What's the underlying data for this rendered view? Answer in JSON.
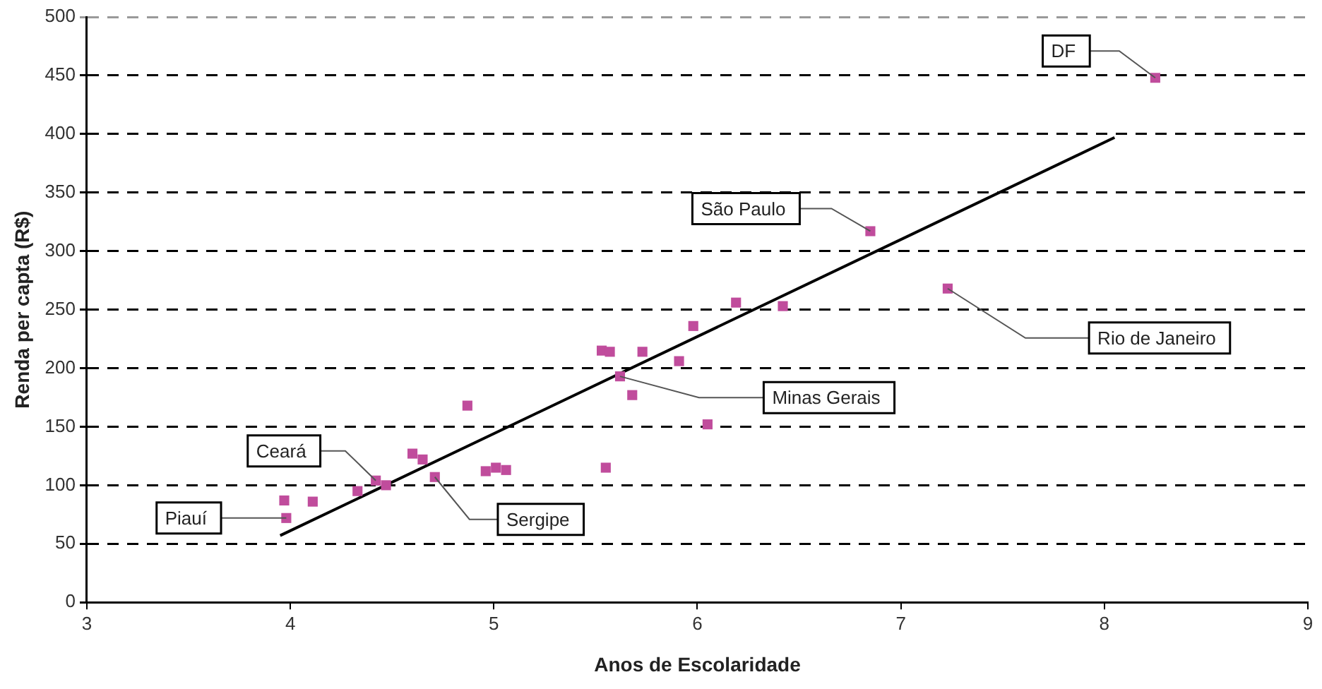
{
  "chart_data": {
    "type": "scatter",
    "xlabel": "Anos de Escolaridade",
    "ylabel": "Renda per capta (R$)",
    "xlim": [
      3,
      9
    ],
    "xticks": [
      3,
      4,
      5,
      6,
      7,
      8,
      9
    ],
    "ylim": [
      0,
      500
    ],
    "yticks": [
      0,
      50,
      100,
      150,
      200,
      250,
      300,
      350,
      400,
      450,
      500
    ],
    "grid": "y",
    "legend": false,
    "series": [
      {
        "marker": "square",
        "color": "#c04c9c",
        "x": [
          3.97,
          3.98,
          4.11,
          4.33,
          4.42,
          4.47,
          4.6,
          4.65,
          4.71,
          4.87,
          4.96,
          5.01,
          5.06,
          5.53,
          5.57,
          5.73,
          5.98,
          6.19,
          6.42,
          5.91,
          5.62,
          5.68,
          6.05,
          5.55,
          6.85,
          7.23,
          8.25
        ],
        "values": [
          87,
          72,
          86,
          95,
          104,
          100,
          127,
          122,
          107,
          168,
          112,
          115,
          113,
          215,
          214,
          214,
          236,
          256,
          253,
          206,
          193,
          177,
          152,
          115,
          317,
          268,
          448
        ]
      },
      {
        "type": "line",
        "color": "#000000",
        "x": [
          3.95,
          8.05
        ],
        "values": [
          57,
          397
        ]
      }
    ],
    "annotations": [
      {
        "text": "DF",
        "x": 8.25,
        "y": 448
      },
      {
        "text": "São Paulo",
        "x": 6.85,
        "y": 317
      },
      {
        "text": "Rio de Janeiro",
        "x": 7.23,
        "y": 268
      },
      {
        "text": "Minas Gerais",
        "x": 5.62,
        "y": 193
      },
      {
        "text": "Sergipe",
        "x": 4.71,
        "y": 107
      },
      {
        "text": "Ceará",
        "x": 4.42,
        "y": 104
      },
      {
        "text": "Piauí",
        "x": 3.98,
        "y": 72
      }
    ]
  }
}
